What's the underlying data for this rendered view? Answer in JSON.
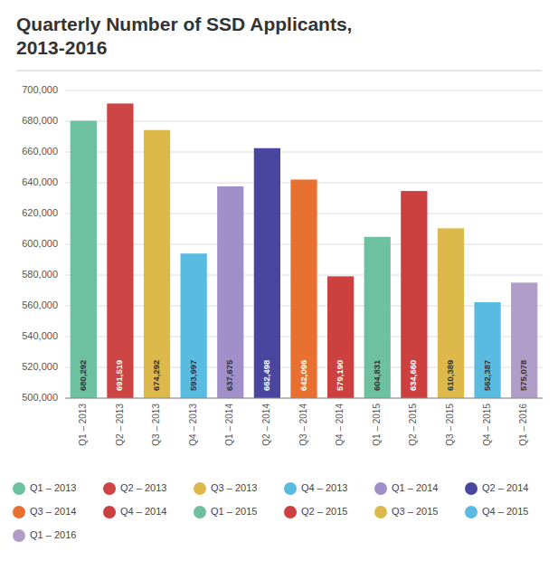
{
  "chart_data": {
    "type": "bar",
    "title": "Quarterly Number of SSD Applicants,\n2013-2016",
    "categories": [
      "Q1 – 2013",
      "Q2 – 2013",
      "Q3 – 2013",
      "Q4 – 2013",
      "Q1 – 2014",
      "Q2 – 2014",
      "Q3 – 2014",
      "Q4 – 2014",
      "Q1 – 2015",
      "Q2 – 2015",
      "Q3 – 2015",
      "Q4 – 2015",
      "Q1 – 2016"
    ],
    "values": [
      680292,
      691519,
      674292,
      593997,
      637675,
      662498,
      642096,
      579190,
      604831,
      634660,
      610389,
      562387,
      575078
    ],
    "value_labels": [
      "680,292",
      "691,519",
      "674,292",
      "593,997",
      "637,675",
      "662,498",
      "642,096",
      "579,190",
      "604,831",
      "634,660",
      "610,389",
      "562,387",
      "575,078"
    ],
    "colors": [
      "#6DC0A0",
      "#CC4444",
      "#DDB84A",
      "#5ABBE0",
      "#A08FC8",
      "#4A46A0",
      "#E87030",
      "#CC4040",
      "#6DC0A0",
      "#CC4040",
      "#DDB84A",
      "#5ABBE0",
      "#B09EC8"
    ],
    "ylim": [
      500000,
      700000
    ],
    "yticks": [
      {
        "value": 500000,
        "label": "500,000"
      },
      {
        "value": 520000,
        "label": "520,000"
      },
      {
        "value": 540000,
        "label": "540,000"
      },
      {
        "value": 560000,
        "label": "560,000"
      },
      {
        "value": 580000,
        "label": "580,000"
      },
      {
        "value": 600000,
        "label": "600,000"
      },
      {
        "value": 620000,
        "label": "620,000"
      },
      {
        "value": 640000,
        "label": "640,000"
      },
      {
        "value": 660000,
        "label": "660,000"
      },
      {
        "value": 680000,
        "label": "680,000"
      },
      {
        "value": 700000,
        "label": "700,000"
      }
    ],
    "grid": true,
    "data_labels": true,
    "legend": "bottom"
  }
}
